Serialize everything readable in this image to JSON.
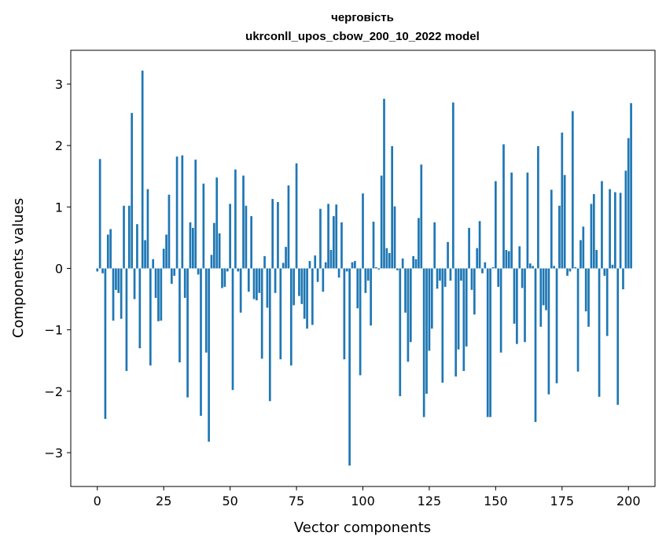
{
  "chart_data": {
    "type": "bar",
    "title_line1": "черговість",
    "title_line2": "ukrconll_upos_cbow_200_10_2022 model",
    "xlabel": "Vector components",
    "ylabel": "Components values",
    "xlim": [
      -10,
      210
    ],
    "ylim": [
      -3.55,
      3.55
    ],
    "xticks": [
      0,
      25,
      50,
      75,
      100,
      125,
      150,
      175,
      200
    ],
    "yticks": [
      -3,
      -2,
      -1,
      0,
      1,
      2,
      3
    ],
    "xtick_labels": [
      "0",
      "25",
      "50",
      "75",
      "100",
      "125",
      "150",
      "175",
      "200"
    ],
    "ytick_labels": [
      "−3",
      "−2",
      "−1",
      "0",
      "1",
      "2",
      "3"
    ],
    "bar_color": "#1f77b4",
    "grid": false,
    "x_start": 0,
    "values": [
      -0.05,
      1.78,
      -0.08,
      -2.45,
      0.55,
      0.64,
      -0.85,
      -0.35,
      -0.4,
      -0.82,
      1.02,
      -1.67,
      1.02,
      2.53,
      -0.5,
      0.72,
      -1.3,
      3.22,
      0.46,
      1.29,
      -1.58,
      0.15,
      -0.48,
      -0.86,
      -0.85,
      0.32,
      0.55,
      1.2,
      -0.25,
      -0.12,
      1.82,
      -1.53,
      1.84,
      -0.48,
      -2.1,
      0.75,
      0.66,
      1.77,
      -0.1,
      -2.4,
      1.38,
      -1.37,
      -2.82,
      0.22,
      0.74,
      1.48,
      0.57,
      -0.32,
      -0.3,
      -0.05,
      1.05,
      -1.98,
      1.61,
      -0.05,
      -0.72,
      1.51,
      1.02,
      -0.38,
      0.85,
      -0.5,
      -0.52,
      -0.4,
      -1.47,
      0.2,
      -0.64,
      -2.16,
      1.13,
      -0.4,
      1.08,
      -1.48,
      0.09,
      0.35,
      1.35,
      -1.58,
      -0.6,
      1.71,
      -0.45,
      -0.58,
      -0.82,
      -0.98,
      0.12,
      -0.92,
      0.21,
      -0.22,
      0.97,
      -0.38,
      0.1,
      1.05,
      0.3,
      0.85,
      1.04,
      -0.15,
      0.75,
      -1.48,
      -0.05,
      -3.21,
      0.1,
      0.12,
      -0.65,
      -1.74,
      1.22,
      -0.4,
      -0.2,
      -0.93,
      0.76,
      0.02,
      -0.02,
      1.51,
      2.76,
      0.33,
      0.25,
      1.99,
      1.01,
      -0.03,
      -2.08,
      0.16,
      -0.72,
      -1.52,
      -1.2,
      0.2,
      0.15,
      0.82,
      1.69,
      -2.42,
      -2.04,
      -1.34,
      -0.98,
      0.75,
      -0.33,
      -0.2,
      -1.86,
      -0.3,
      0.43,
      -0.2,
      2.7,
      -1.76,
      -1.32,
      -0.2,
      -1.67,
      -1.27,
      0.66,
      -0.35,
      -0.75,
      0.33,
      0.77,
      -0.08,
      0.1,
      -2.42,
      -2.42,
      0.02,
      1.42,
      -0.3,
      -1.37,
      2.02,
      0.3,
      0.28,
      1.56,
      -0.9,
      -1.23,
      0.36,
      -0.32,
      -1.2,
      1.56,
      0.08,
      0.04,
      -2.5,
      1.99,
      -0.95,
      -0.6,
      -0.68,
      -2.05,
      1.28,
      0.04,
      -1.87,
      1.02,
      2.21,
      1.52,
      -0.12,
      -0.05,
      2.56,
      0.02,
      -1.68,
      0.46,
      0.68,
      -0.7,
      -0.95,
      1.05,
      1.21,
      0.3,
      -2.09,
      1.42,
      -0.12,
      -1.1,
      1.29,
      0.06,
      1.24,
      -2.22,
      1.23,
      -0.34,
      1.59,
      2.12,
      2.69
    ]
  }
}
